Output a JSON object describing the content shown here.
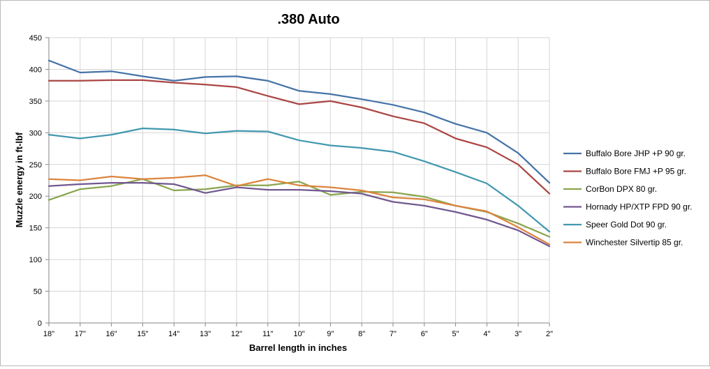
{
  "chart_data": {
    "type": "line",
    "title": ".380 Auto",
    "xlabel": "Barrel length in inches",
    "ylabel": "Muzzle energy in ft-lbf",
    "categories": [
      "18\"",
      "17\"",
      "16\"",
      "15\"",
      "14\"",
      "13\"",
      "12\"",
      "11\"",
      "10\"",
      "9\"",
      "8\"",
      "7\"",
      "6\"",
      "5\"",
      "4\"",
      "3\"",
      "2\""
    ],
    "ylim": [
      0,
      450
    ],
    "yticks": [
      0,
      50,
      100,
      150,
      200,
      250,
      300,
      350,
      400,
      450
    ],
    "grid": true,
    "legend_position": "right",
    "series": [
      {
        "name": "Buffalo Bore JHP +P 90 gr.",
        "color": "#4573a7",
        "values": [
          414,
          395,
          397,
          389,
          382,
          388,
          389,
          382,
          366,
          361,
          353,
          344,
          332,
          314,
          300,
          268,
          221
        ]
      },
      {
        "name": "Buffalo Bore FMJ +P 95 gr.",
        "color": "#aa4643",
        "values": [
          382,
          382,
          383,
          383,
          379,
          376,
          372,
          358,
          345,
          350,
          340,
          326,
          315,
          291,
          277,
          250,
          204
        ]
      },
      {
        "name": "CorBon DPX 80 gr.",
        "color": "#89a54e",
        "values": [
          194,
          211,
          216,
          227,
          209,
          211,
          217,
          217,
          223,
          202,
          207,
          206,
          199,
          185,
          175,
          157,
          136
        ]
      },
      {
        "name": "Hornady HP/XTP FPD 90 gr.",
        "color": "#71588f",
        "values": [
          216,
          219,
          221,
          221,
          219,
          205,
          214,
          210,
          210,
          208,
          204,
          191,
          185,
          175,
          163,
          146,
          121
        ]
      },
      {
        "name": "Speer Gold Dot 90 gr.",
        "color": "#4298af",
        "values": [
          297,
          291,
          297,
          307,
          305,
          299,
          303,
          302,
          288,
          280,
          276,
          270,
          255,
          238,
          220,
          185,
          144
        ]
      },
      {
        "name": "Winchester Silvertip 85 gr.",
        "color": "#db843d",
        "values": [
          227,
          225,
          231,
          227,
          229,
          233,
          216,
          227,
          217,
          214,
          209,
          198,
          195,
          185,
          176,
          151,
          124
        ]
      }
    ]
  }
}
